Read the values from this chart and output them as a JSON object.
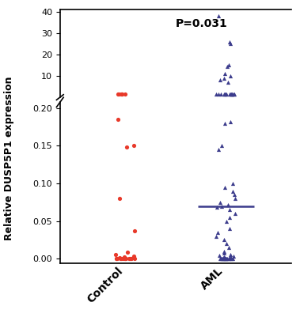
{
  "control_bot": [
    0.0,
    0.0,
    0.0,
    0.0,
    0.0,
    0.0,
    0.0,
    0.0,
    0.0,
    0.0,
    0.0,
    0.0,
    0.0,
    0.0,
    0.0,
    0.001,
    0.001,
    0.002,
    0.003,
    0.005,
    0.009,
    0.037,
    0.08,
    0.148,
    0.15,
    0.185
  ],
  "control_top": [
    1.5,
    1.5,
    1.5,
    1.5,
    1.5,
    1.5
  ],
  "aml_bot": [
    0.0,
    0.0,
    0.0,
    0.0,
    0.0,
    0.0,
    0.0,
    0.0,
    0.0,
    0.0,
    0.0,
    0.0,
    0.0,
    0.0,
    0.0,
    0.0,
    0.0,
    0.001,
    0.001,
    0.002,
    0.002,
    0.003,
    0.004,
    0.005,
    0.008,
    0.01,
    0.015,
    0.02,
    0.025,
    0.03,
    0.035,
    0.04,
    0.05,
    0.055,
    0.06,
    0.065,
    0.068,
    0.07,
    0.072,
    0.075,
    0.08,
    0.085,
    0.09,
    0.095,
    0.1,
    0.145,
    0.15,
    0.18,
    0.182
  ],
  "aml_top_cluster": [
    1.5,
    1.5,
    1.5,
    1.5,
    1.5,
    1.5,
    1.5,
    1.5,
    1.5,
    1.5,
    1.5,
    1.5,
    1.5,
    1.5,
    1.5,
    1.5,
    1.5,
    1.5
  ],
  "aml_top_outliers": [
    7.0,
    8.0,
    9.0,
    10.0,
    11.0,
    14.5,
    15.0,
    25.0,
    26.0,
    38.0
  ],
  "aml_median": 0.07,
  "control_color": "#e8392a",
  "aml_color": "#3c3c8c",
  "pvalue_text": "P=0.031",
  "ylabel": "Relative DUSP5P1 expression",
  "xlabel_control": "Control",
  "xlabel_aml": "AML",
  "yticks_bottom": [
    0.0,
    0.05,
    0.1,
    0.15,
    0.2
  ],
  "yticks_top": [
    10,
    20,
    30,
    40
  ],
  "background_color": "#ffffff"
}
